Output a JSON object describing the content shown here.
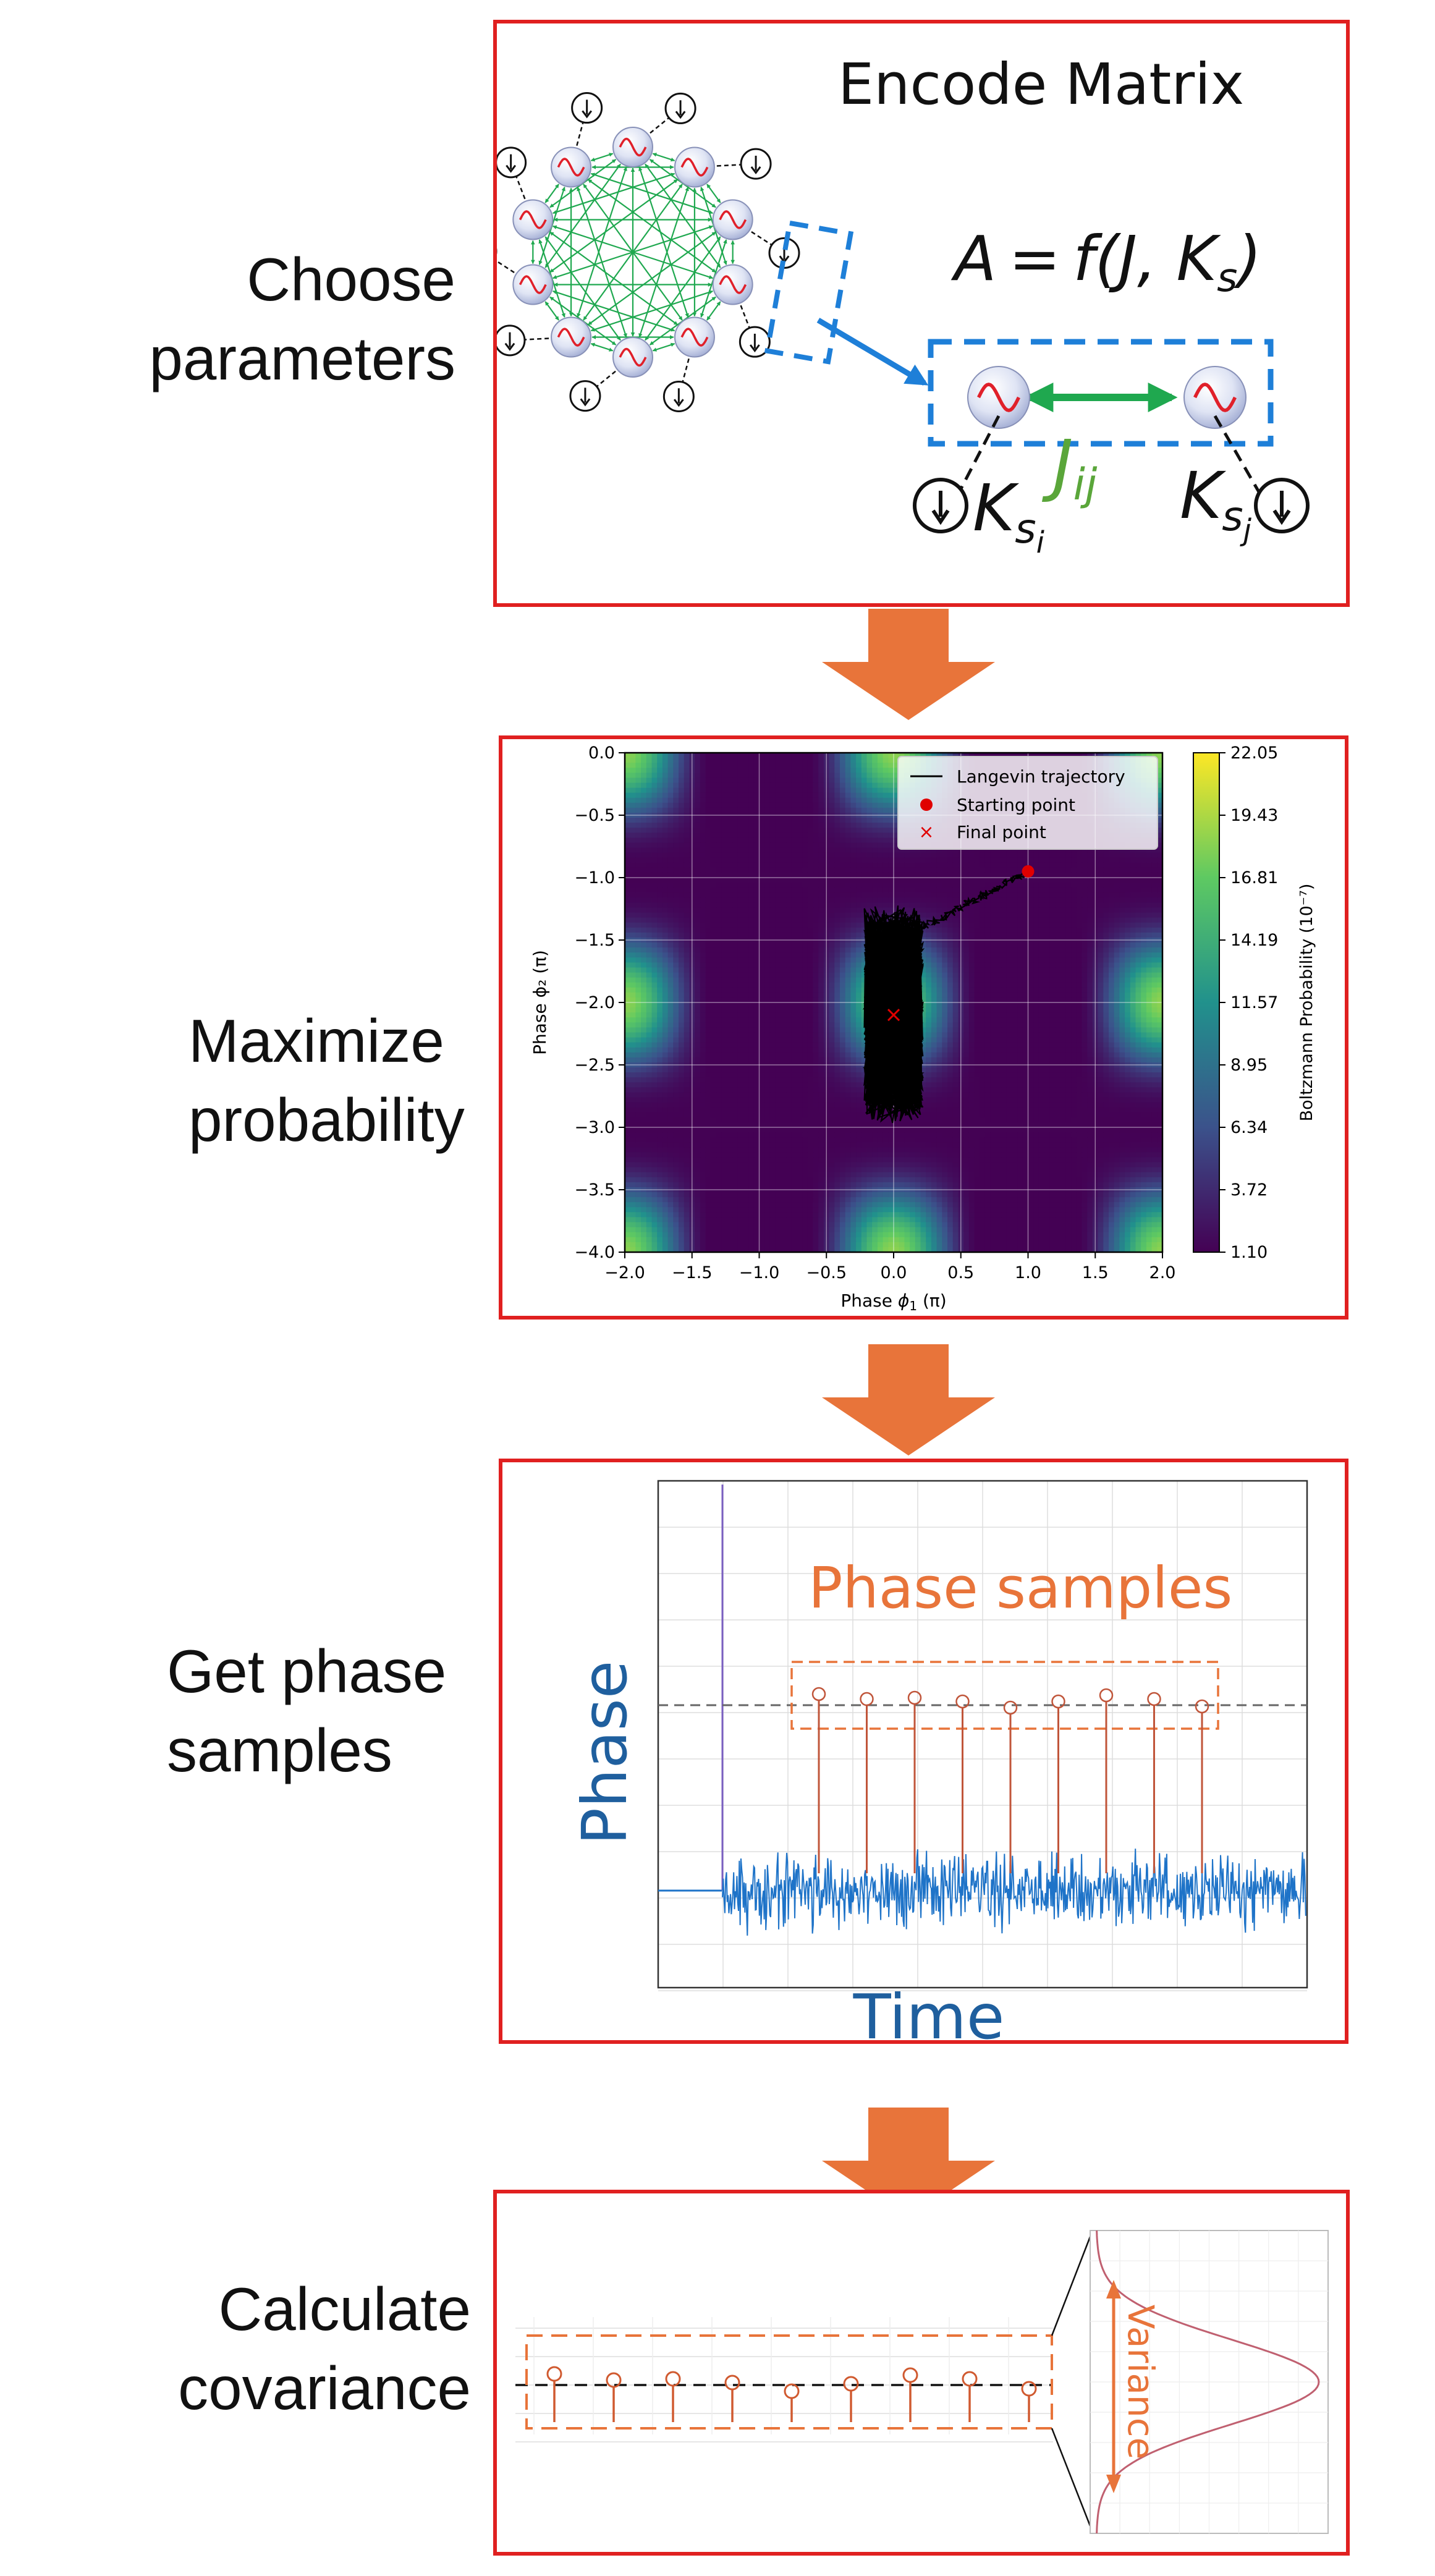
{
  "steps": [
    {
      "label_l1": "Choose",
      "label_l2": "parameters"
    },
    {
      "label_l1": "Maximize",
      "label_l2": "probability"
    },
    {
      "label_l1": "Get phase",
      "label_l2": "samples"
    },
    {
      "label_l1": "Calculate",
      "label_l2": "covariance"
    }
  ],
  "panel1": {
    "title": "Encode Matrix",
    "equation": {
      "lhs": "A",
      "eq": "=",
      "f": "f",
      "args": "(J, K",
      "sub": "s",
      "close": ")"
    },
    "coupling": {
      "J": "J",
      "J_sub": "ij"
    },
    "k_left": {
      "K": "K",
      "sub": "s",
      "subsub": "i"
    },
    "k_right": {
      "K": "K",
      "sub": "s",
      "subsub": "j"
    },
    "colors": {
      "link": "#1fa84f",
      "highlight": "#1e7fd8",
      "sine": "#e0202a"
    },
    "icons": [
      "oscillator-icon",
      "spin-down-icon"
    ]
  },
  "panel2": {
    "legend": [
      "Langevin trajectory",
      "Starting point",
      "Final point"
    ],
    "xlabel_prefix": "Phase ",
    "xlabel_sym": "ϕ",
    "xlabel_sub": "1",
    "xlabel_suffix": " (π)",
    "ylabel": "Phase ϕ₂ (π)",
    "colorbar_label": "Boltzmann Probability (10⁻⁷)",
    "x_ticks": [
      "−2.0",
      "−1.5",
      "−1.0",
      "−0.5",
      "0.0",
      "0.5",
      "1.0",
      "1.5",
      "2.0"
    ],
    "y_ticks": [
      "0.0",
      "−0.5",
      "−1.0",
      "−1.5",
      "−2.0",
      "−2.5",
      "−3.0",
      "−3.5",
      "−4.0"
    ],
    "cbar_ticks": [
      "22.05",
      "19.43",
      "16.81",
      "14.19",
      "11.57",
      "8.95",
      "6.34",
      "3.72",
      "1.10"
    ]
  },
  "panel3": {
    "title": "Phase samples",
    "ylabel": "Phase",
    "xlabel": "Time",
    "colors": {
      "title": "#e8743a",
      "axis": "#1f5f9e",
      "signal": "#1e73c8",
      "stem": "#c0553a"
    }
  },
  "panel4": {
    "variance_label": "Variance",
    "colors": {
      "box": "#e8743a",
      "stem": "#d05a30",
      "curve": "#c06070"
    }
  },
  "arrow_color": "#e8743a",
  "chart_data": {
    "type": "heatmap",
    "xlabel": "Phase ϕ1 (π)",
    "ylabel": "Phase ϕ2 (π)",
    "xlim": [
      -2.0,
      2.0
    ],
    "ylim": [
      -4.0,
      0.0
    ],
    "colorbar": {
      "label": "Boltzmann Probability (10⁻⁷)",
      "min": 1.1,
      "max": 22.05
    },
    "series": [
      {
        "name": "Starting point",
        "x": [
          1.0
        ],
        "y": [
          -0.95
        ]
      },
      {
        "name": "Final point",
        "x": [
          0.0
        ],
        "y": [
          -2.1
        ]
      }
    ]
  }
}
